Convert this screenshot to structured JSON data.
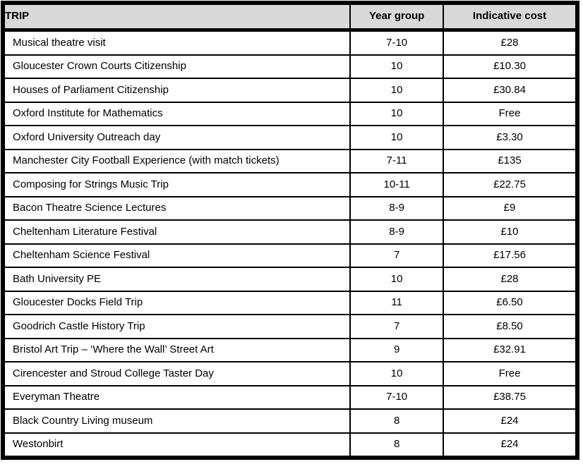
{
  "colors": {
    "header_bg": "#d9d9d9",
    "border": "#000000",
    "text": "#000000",
    "row_bg": "#ffffff"
  },
  "table": {
    "headers": [
      {
        "label": "TRIP"
      },
      {
        "label": "Year group"
      },
      {
        "label": "Indicative cost"
      }
    ],
    "rows": [
      {
        "trip": "Musical theatre visit",
        "year_group": "7-10",
        "cost": "£28"
      },
      {
        "trip": "Gloucester Crown Courts Citizenship",
        "year_group": "10",
        "cost": "£10.30"
      },
      {
        "trip": "Houses of Parliament Citizenship",
        "year_group": "10",
        "cost": "£30.84"
      },
      {
        "trip": "Oxford Institute for Mathematics",
        "year_group": "10",
        "cost": "Free"
      },
      {
        "trip": "Oxford University Outreach day",
        "year_group": "10",
        "cost": "£3.30"
      },
      {
        "trip": "Manchester City Football Experience (with match tickets)",
        "year_group": "7-11",
        "cost": "£135"
      },
      {
        "trip": "Composing for Strings Music Trip",
        "year_group": "10-11",
        "cost": "£22.75"
      },
      {
        "trip": "Bacon Theatre Science Lectures",
        "year_group": "8-9",
        "cost": "£9"
      },
      {
        "trip": "Cheltenham Literature Festival",
        "year_group": "8-9",
        "cost": "£10"
      },
      {
        "trip": "Cheltenham Science Festival",
        "year_group": "7",
        "cost": "£17.56"
      },
      {
        "trip": "Bath University PE",
        "year_group": "10",
        "cost": "£28"
      },
      {
        "trip": "Gloucester Docks Field Trip",
        "year_group": "11",
        "cost": "£6.50"
      },
      {
        "trip": "Goodrich Castle History Trip",
        "year_group": "7",
        "cost": "£8.50"
      },
      {
        "trip": "Bristol Art Trip – ‘Where the Wall’ Street Art",
        "year_group": "9",
        "cost": "£32.91"
      },
      {
        "trip": "Cirencester and Stroud College Taster Day",
        "year_group": "10",
        "cost": "Free"
      },
      {
        "trip": "Everyman Theatre",
        "year_group": "7-10",
        "cost": "£38.75"
      },
      {
        "trip": "Black Country Living museum",
        "year_group": "8",
        "cost": "£24"
      },
      {
        "trip": "Westonbirt",
        "year_group": "8",
        "cost": "£24"
      }
    ]
  }
}
